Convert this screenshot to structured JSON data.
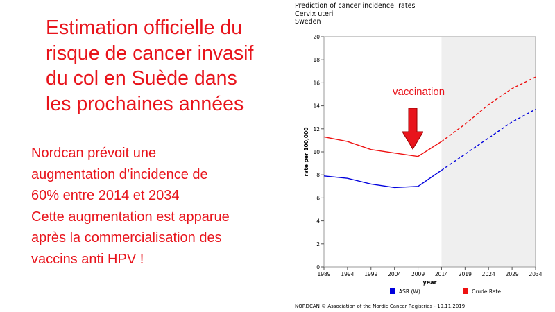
{
  "slide": {
    "title_lines": [
      "Estimation officielle du",
      "risque de cancer invasif",
      "du col en Suède dans",
      "les prochaines années"
    ],
    "body_lines": [
      "Nordcan prévoit une",
      "augmentation d’incidence de",
      "60% entre 2014 et 2034",
      "Cette augmentation est apparue",
      "après la commercialisation des",
      "vaccins anti HPV !"
    ],
    "annotation": "vaccination",
    "colors": {
      "accent": "#e8141c",
      "arrow": "#e8141c"
    }
  },
  "figure": {
    "title_lines": [
      "Prediction of cancer incidence: rates",
      "Cervix uteri",
      "Sweden"
    ],
    "footer": "NORDCAN © Association of the Nordic Cancer Registries - 19.11.2019"
  },
  "chart_data": {
    "type": "line",
    "title": "Prediction of cancer incidence: rates",
    "xlabel": "year",
    "ylabel": "rate per 100,000",
    "x": [
      1989,
      1994,
      1999,
      2004,
      2009,
      2014,
      2019,
      2024,
      2029,
      2034
    ],
    "x_ticks": [
      "1989",
      "1994",
      "1999",
      "2004",
      "2009",
      "2014",
      "2019",
      "2024",
      "2029",
      "2034"
    ],
    "y_ticks": [
      "0",
      "2",
      "4",
      "6",
      "8",
      "10",
      "12",
      "14",
      "16",
      "18",
      "20"
    ],
    "ylim": [
      0,
      20
    ],
    "xlim": [
      1989,
      2034
    ],
    "projection_start": 2014,
    "projection_shaded": true,
    "grid": false,
    "legend_position": "bottom",
    "series": [
      {
        "name": "ASR (W)",
        "color": "#0000dd",
        "x": [
          1989,
          1994,
          1999,
          2004,
          2009,
          2014,
          2019,
          2024,
          2029,
          2034
        ],
        "values": [
          7.9,
          7.7,
          7.2,
          6.9,
          7.0,
          8.4,
          9.8,
          11.2,
          12.6,
          13.7
        ]
      },
      {
        "name": "Crude Rate",
        "color": "#ee1111",
        "x": [
          1989,
          1994,
          1999,
          2004,
          2009,
          2014,
          2019,
          2024,
          2029,
          2034
        ],
        "values": [
          11.3,
          10.9,
          10.2,
          9.9,
          9.6,
          10.9,
          12.4,
          14.1,
          15.5,
          16.5
        ]
      }
    ]
  }
}
